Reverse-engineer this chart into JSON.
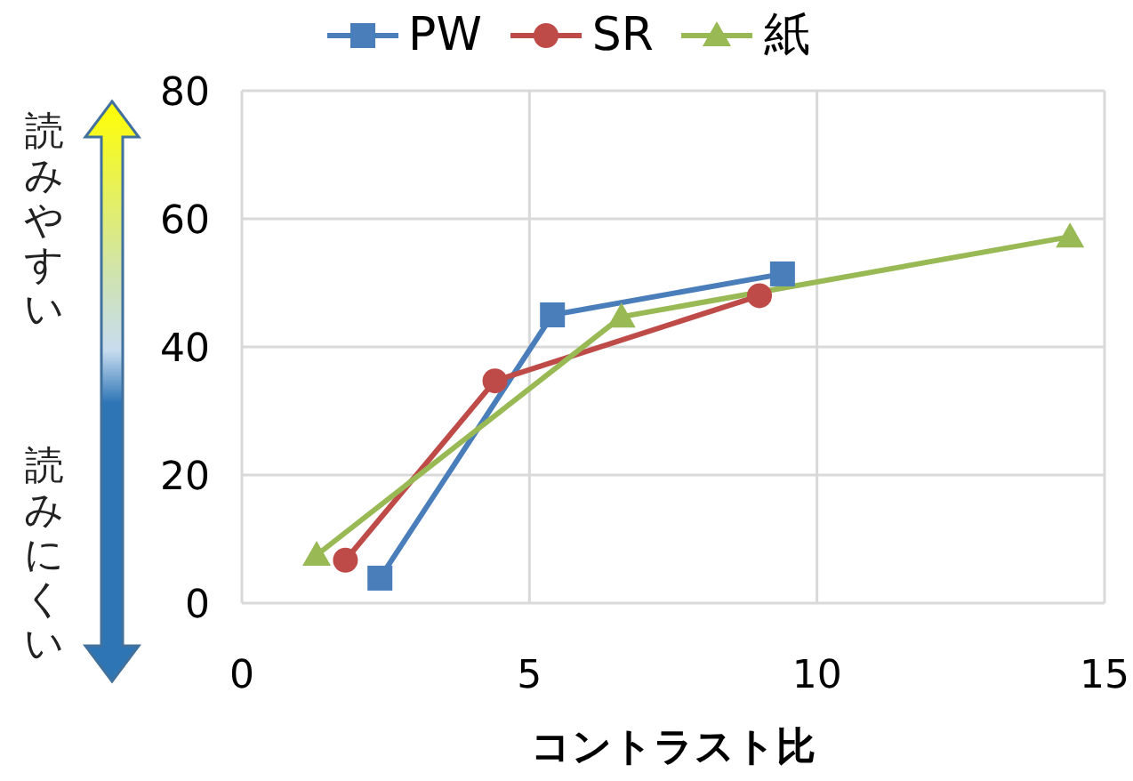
{
  "chart_data": {
    "type": "line",
    "xlabel": "コントラスト比",
    "annotations": [
      "読みやすい",
      "読みにくい"
    ],
    "xlim": [
      0,
      15
    ],
    "xticks": [
      0,
      5,
      10,
      15
    ],
    "ylim": [
      0,
      80
    ],
    "yticks": [
      0,
      20,
      40,
      60,
      80
    ],
    "grid": true,
    "legend": "top",
    "series": [
      {
        "name": "PW",
        "color": "#4a7ebb",
        "marker": "square",
        "x": [
          2.4,
          5.4,
          9.4
        ],
        "values": [
          3.9,
          45,
          51.4
        ]
      },
      {
        "name": "SR",
        "color": "#be4b48",
        "marker": "circle",
        "x": [
          1.8,
          4.4,
          9.0
        ],
        "values": [
          6.7,
          34.7,
          48
        ]
      },
      {
        "name": "紙",
        "color": "#98b954",
        "marker": "triangle",
        "x": [
          1.3,
          6.6,
          14.4
        ],
        "values": [
          7.5,
          44.7,
          57.2
        ]
      }
    ]
  }
}
